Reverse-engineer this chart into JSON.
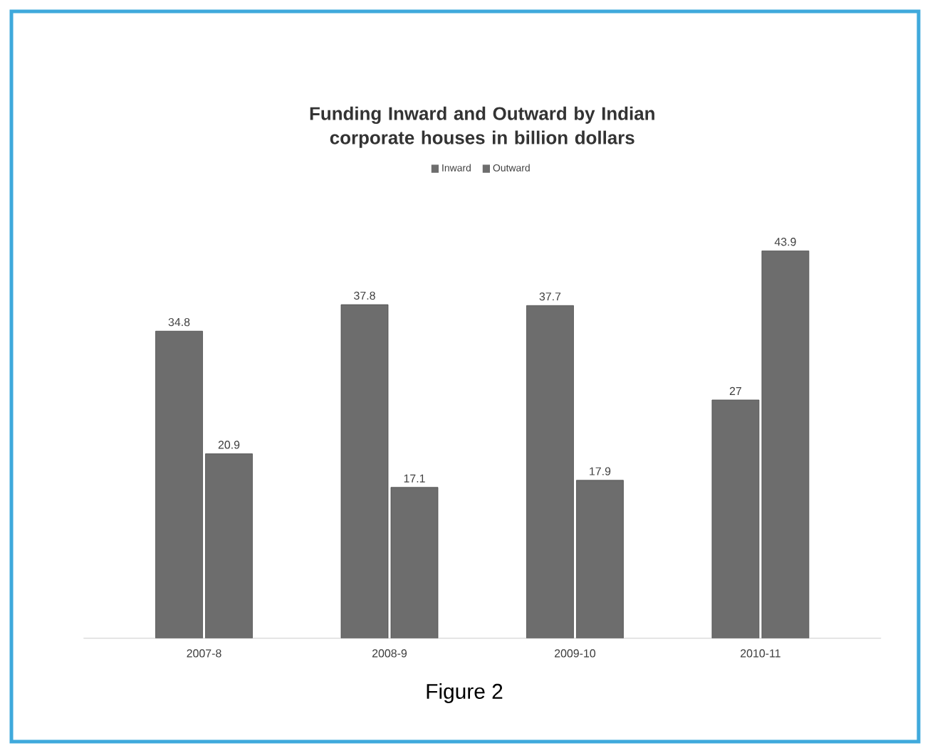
{
  "chart_data": {
    "type": "bar",
    "title": "Funding Inward and Outward by Indian corporate houses in billion dollars",
    "categories": [
      "2007-8",
      "2008-9",
      "2009-10",
      "2010-11"
    ],
    "series": [
      {
        "name": "Inward",
        "color": "#6d6d6d",
        "values": [
          34.8,
          37.8,
          37.7,
          27
        ]
      },
      {
        "name": "Outward",
        "color": "#6d6d6d",
        "values": [
          20.9,
          17.1,
          17.9,
          43.9
        ]
      }
    ],
    "data_labels": true,
    "legend": "top",
    "tick_labels": "x",
    "annotations": [
      "Figure 2"
    ]
  }
}
